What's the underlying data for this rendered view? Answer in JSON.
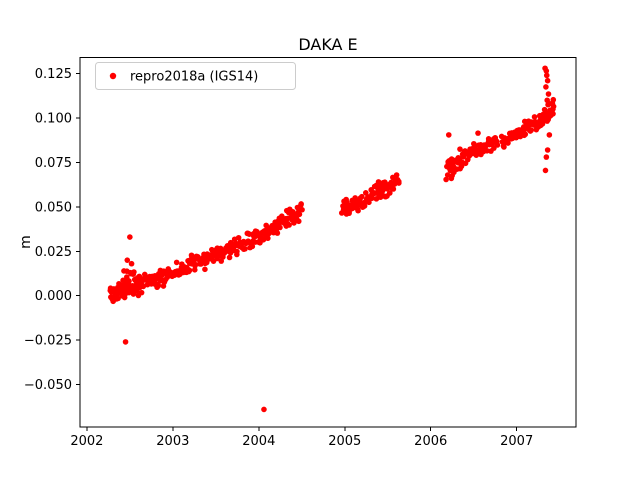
{
  "chart_data": {
    "type": "scatter",
    "title": "DAKA E",
    "xlabel": "",
    "ylabel": "m",
    "grid": false,
    "background": "#ffffff",
    "axis_color": "#000000",
    "xlim": [
      2001.92,
      2007.69
    ],
    "ylim": [
      -0.074,
      0.134
    ],
    "xtick_values": [
      2002,
      2003,
      2004,
      2005,
      2006,
      2007
    ],
    "xtick_labels": [
      "2002",
      "2003",
      "2004",
      "2005",
      "2006",
      "2007"
    ],
    "ytick_values": [
      -0.05,
      -0.025,
      0.0,
      0.025,
      0.05,
      0.075,
      0.1,
      0.125
    ],
    "ytick_labels": [
      "−0.050",
      "−0.025",
      "0.000",
      "0.025",
      "0.050",
      "0.075",
      "0.100",
      "0.125"
    ],
    "legend": {
      "position": "upper left",
      "entries": [
        {
          "label": "repro2018a (IGS14)",
          "marker_color": "#ff0000"
        }
      ],
      "edge_color": "#cccccc",
      "face_color": "#ffffff"
    },
    "series": [
      {
        "name": "repro2018a (IGS14)",
        "color": "#ff0000",
        "marker": "circle",
        "marker_radius_px": 2.8,
        "seed": 42,
        "segments": [
          {
            "x0": 2002.27,
            "x1": 2002.62,
            "y0": 0.001,
            "y1": 0.006,
            "n": 70,
            "jitter_y": 0.0045,
            "jitter_x": 0.01
          },
          {
            "x0": 2002.4,
            "x1": 2002.55,
            "y0": 0.004,
            "y1": 0.014,
            "n": 18,
            "jitter_y": 0.007,
            "jitter_x": 0.01
          },
          {
            "x0": 2002.62,
            "x1": 2003.05,
            "y0": 0.006,
            "y1": 0.013,
            "n": 60,
            "jitter_y": 0.004,
            "jitter_x": 0.008
          },
          {
            "x0": 2003.05,
            "x1": 2003.55,
            "y0": 0.014,
            "y1": 0.024,
            "n": 70,
            "jitter_y": 0.0042,
            "jitter_x": 0.008
          },
          {
            "x0": 2003.55,
            "x1": 2004.05,
            "y0": 0.024,
            "y1": 0.034,
            "n": 70,
            "jitter_y": 0.0042,
            "jitter_x": 0.008
          },
          {
            "x0": 2004.05,
            "x1": 2004.5,
            "y0": 0.034,
            "y1": 0.047,
            "n": 64,
            "jitter_y": 0.0045,
            "jitter_x": 0.008
          },
          {
            "x0": 2004.97,
            "x1": 2005.28,
            "y0": 0.049,
            "y1": 0.054,
            "n": 46,
            "jitter_y": 0.004,
            "jitter_x": 0.008
          },
          {
            "x0": 2005.28,
            "x1": 2005.63,
            "y0": 0.056,
            "y1": 0.065,
            "n": 50,
            "jitter_y": 0.0042,
            "jitter_x": 0.008
          },
          {
            "x0": 2006.18,
            "x1": 2006.36,
            "y0": 0.071,
            "y1": 0.077,
            "n": 30,
            "jitter_y": 0.0055,
            "jitter_x": 0.008
          },
          {
            "x0": 2006.36,
            "x1": 2006.77,
            "y0": 0.078,
            "y1": 0.087,
            "n": 56,
            "jitter_y": 0.004,
            "jitter_x": 0.008
          },
          {
            "x0": 2006.83,
            "x1": 2007.08,
            "y0": 0.087,
            "y1": 0.093,
            "n": 36,
            "jitter_y": 0.0035,
            "jitter_x": 0.008
          },
          {
            "x0": 2007.08,
            "x1": 2007.3,
            "y0": 0.094,
            "y1": 0.099,
            "n": 32,
            "jitter_y": 0.0035,
            "jitter_x": 0.008
          },
          {
            "x0": 2007.3,
            "x1": 2007.43,
            "y0": 0.1,
            "y1": 0.105,
            "n": 34,
            "jitter_y": 0.004,
            "jitter_x": 0.006
          }
        ],
        "outliers": [
          [
            2002.45,
            -0.026
          ],
          [
            2002.5,
            0.033
          ],
          [
            2002.47,
            0.02
          ],
          [
            2002.52,
            0.018
          ],
          [
            2004.06,
            -0.064
          ],
          [
            2005.02,
            0.046
          ],
          [
            2005.05,
            0.047
          ],
          [
            2006.21,
            0.0905
          ],
          [
            2006.24,
            0.066
          ],
          [
            2006.55,
            0.0915
          ],
          [
            2007.33,
            0.128
          ],
          [
            2007.345,
            0.1265
          ],
          [
            2007.35,
            0.124
          ],
          [
            2007.36,
            0.121
          ],
          [
            2007.34,
            0.1175
          ],
          [
            2007.37,
            0.1135
          ],
          [
            2007.355,
            0.11
          ],
          [
            2007.365,
            0.1075
          ],
          [
            2007.38,
            0.0905
          ],
          [
            2007.36,
            0.082
          ],
          [
            2007.345,
            0.078
          ],
          [
            2007.335,
            0.0705
          ]
        ]
      }
    ]
  }
}
